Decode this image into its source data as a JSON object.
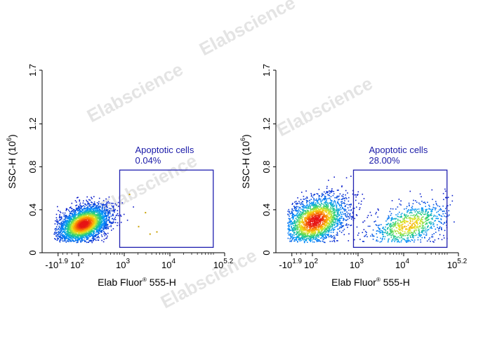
{
  "watermark": "Elabscience",
  "chart_data": [
    {
      "type": "scatter",
      "xlabel": "Elab Fluor",
      "xlabel_sup": "®",
      "xlabel_suffix": " 555-H",
      "ylabel": "SSC-H (10",
      "ylabel_sup": "6",
      "ylabel_close": ")",
      "x_scale": "biexponential",
      "ylim": [
        0,
        1.7
      ],
      "y_ticks": [
        "0",
        "0.4",
        "0.8",
        "1.2",
        "1.7"
      ],
      "x_ticks": [
        {
          "base": "-10",
          "exp": "1.9"
        },
        {
          "base": "10",
          "exp": "2"
        },
        {
          "base": "10",
          "exp": "3"
        },
        {
          "base": "10",
          "exp": "4"
        },
        {
          "base": "10",
          "exp": "5.2"
        }
      ],
      "gate": {
        "label": "Apoptotic cells",
        "percent": "0.04%",
        "x_range_log": [
          2.9,
          4.95
        ],
        "y_range": [
          0.05,
          0.77
        ]
      },
      "populations": [
        {
          "name": "",
          "x_center_log": 2.1,
          "y_center": 0.27,
          "x_spread": 0.28,
          "y_spread": 0.08,
          "weight": 1.0
        }
      ]
    },
    {
      "type": "scatter",
      "xlabel": "Elab Fluor",
      "xlabel_sup": "®",
      "xlabel_suffix": " 555-H",
      "ylabel": "SSC-H (10",
      "ylabel_sup": "6",
      "ylabel_close": ")",
      "x_scale": "biexponential",
      "ylim": [
        0,
        1.7
      ],
      "y_ticks": [
        "0",
        "0.4",
        "0.8",
        "1.2",
        "1.7"
      ],
      "x_ticks": [
        {
          "base": "-10",
          "exp": "1.9"
        },
        {
          "base": "10",
          "exp": "2"
        },
        {
          "base": "10",
          "exp": "3"
        },
        {
          "base": "10",
          "exp": "4"
        },
        {
          "base": "10",
          "exp": "5.2"
        }
      ],
      "gate": {
        "label": "Apoptotic cells",
        "percent": "28.00%",
        "x_range_log": [
          2.9,
          4.95
        ],
        "y_range": [
          0.05,
          0.77
        ]
      },
      "populations": [
        {
          "name": "",
          "x_center_log": 2.05,
          "y_center": 0.3,
          "x_spread": 0.35,
          "y_spread": 0.11,
          "weight": 0.72
        },
        {
          "name": "",
          "x_center_log": 4.1,
          "y_center": 0.26,
          "x_spread": 0.45,
          "y_spread": 0.1,
          "weight": 0.28
        }
      ]
    }
  ]
}
